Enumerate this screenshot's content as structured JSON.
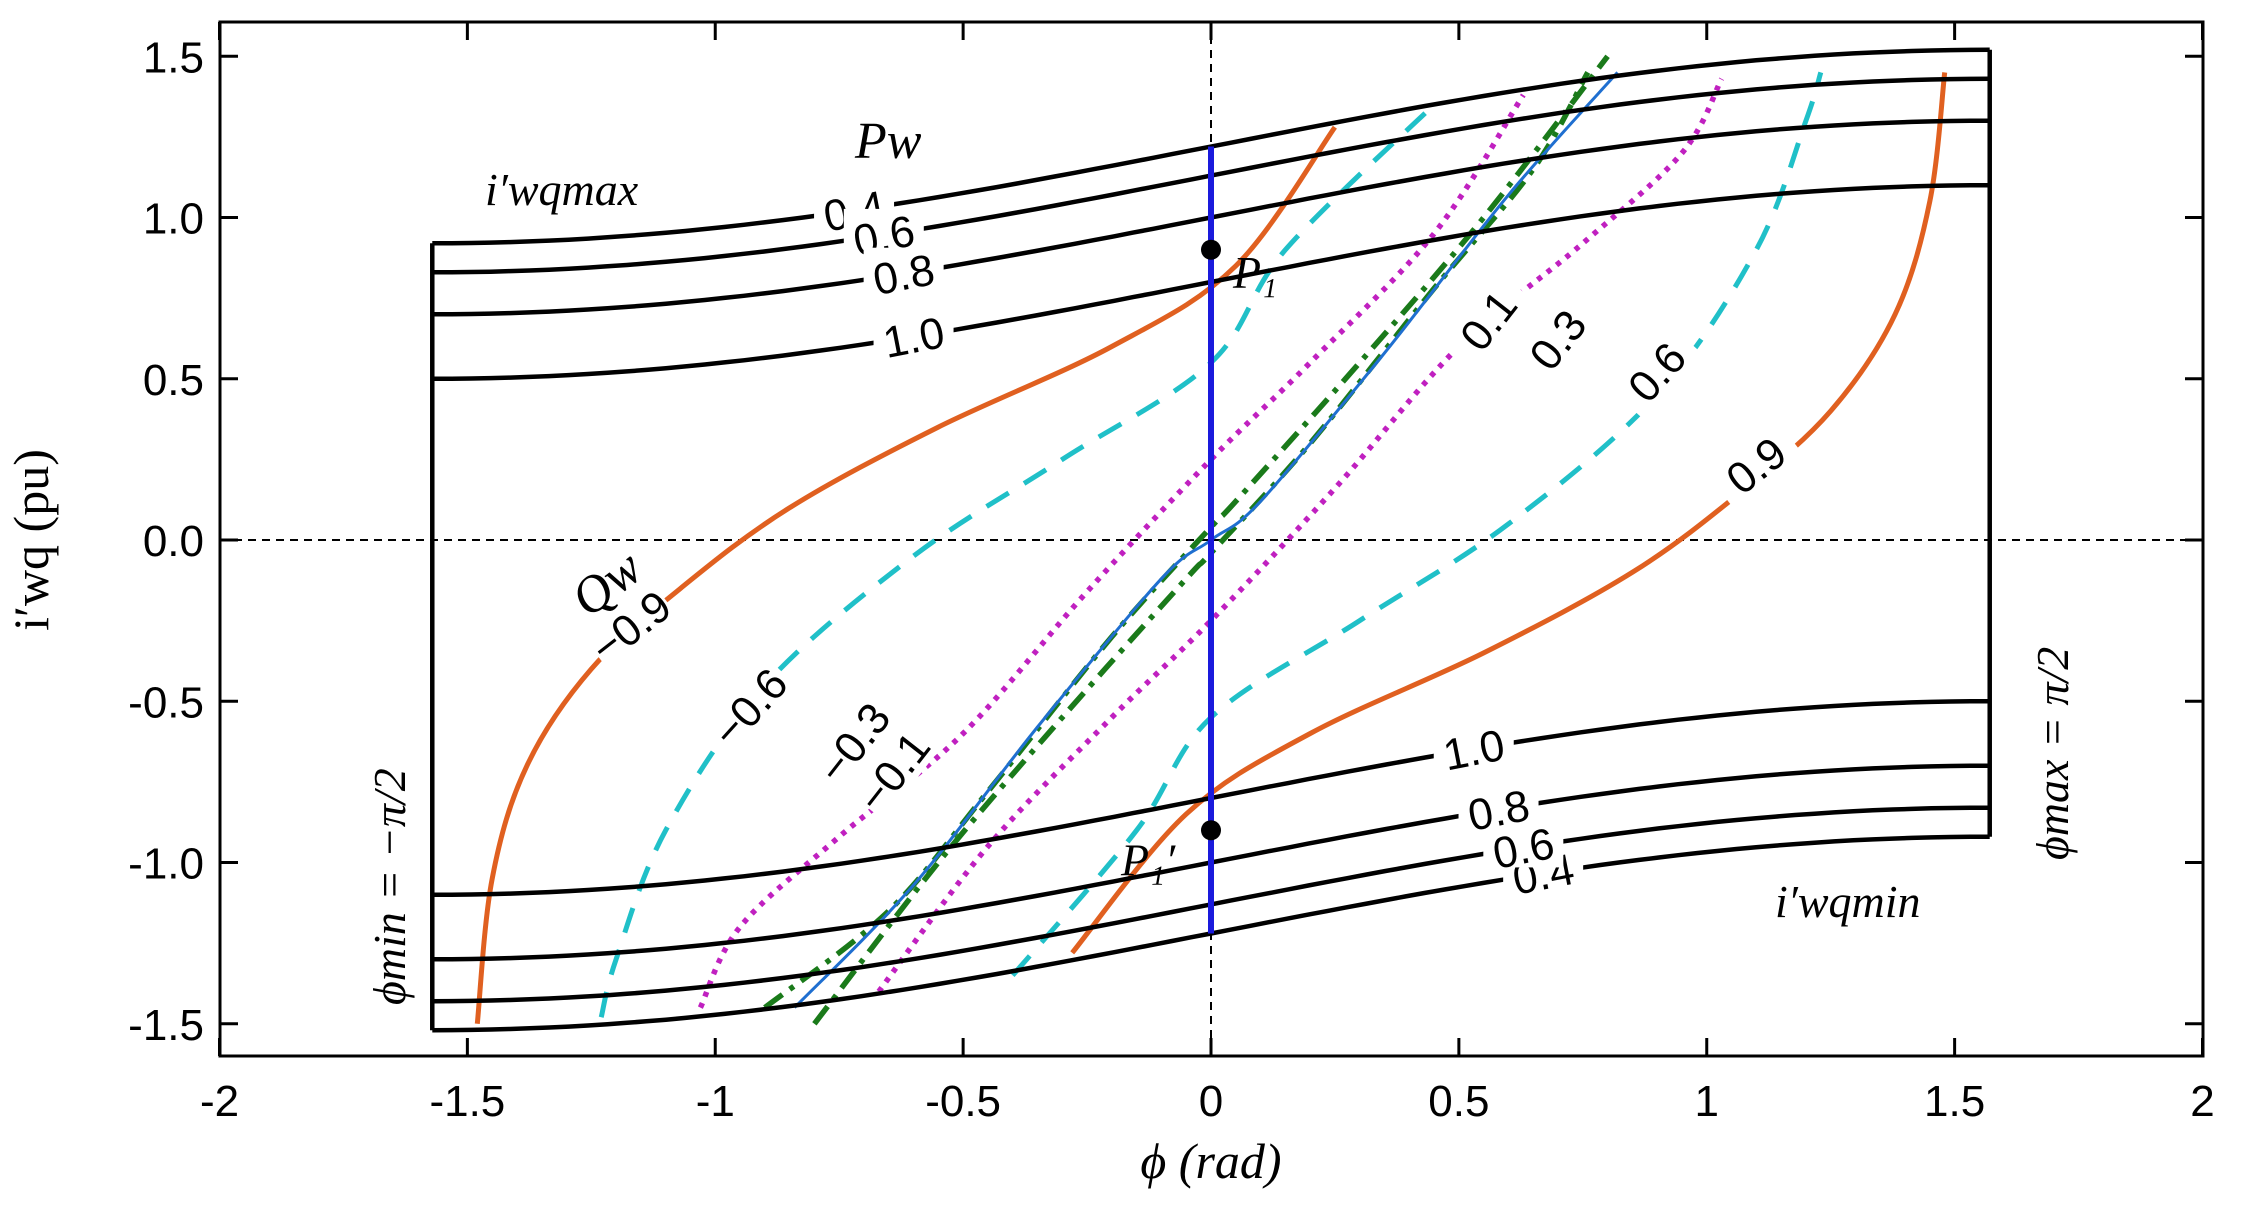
{
  "chart_data": {
    "type": "line",
    "title": "",
    "xlabel": "ϕ (rad)",
    "ylabel": "i′wq (pu)",
    "xlim": [
      -2,
      2
    ],
    "ylim": [
      -1.6,
      1.6
    ],
    "xticks": [
      -2,
      -1.5,
      -1,
      -0.5,
      0,
      0.5,
      1,
      1.5,
      2
    ],
    "xtick_labels": [
      "-2",
      "-1.5",
      "-1",
      "-0.5",
      "0",
      "0.5",
      "1",
      "1.5",
      "2"
    ],
    "yticks": [
      -1.5,
      -1.0,
      -0.5,
      0.0,
      0.5,
      1.0,
      1.5
    ],
    "ytick_labels": [
      "-1.5",
      "-1.0",
      "-0.5",
      "0.0",
      "0.5",
      "1.0",
      "1.5"
    ],
    "phi_limits": [
      -1.5708,
      1.5708
    ],
    "pw_series": [
      {
        "name": "Pw = 0.4",
        "label": "0.4",
        "iwq_at_phi_min": 0.92,
        "iwq_at_phi_max": 1.52
      },
      {
        "name": "Pw = 0.6",
        "label": "0.6",
        "iwq_at_phi_min": 0.83,
        "iwq_at_phi_max": 1.43
      },
      {
        "name": "Pw = 0.8",
        "label": "0.8",
        "iwq_at_phi_min": 0.7,
        "iwq_at_phi_max": 1.3
      },
      {
        "name": "Pw = 1.0",
        "label": "1.0",
        "iwq_at_phi_min": 0.5,
        "iwq_at_phi_max": 1.1
      }
    ],
    "qw_series": [
      {
        "name": "Qw = 0.1",
        "label": "0.1",
        "style": "dashdot",
        "color": "#1a7a1a",
        "points": [
          [
            -0.8,
            -1.5
          ],
          [
            -0.55,
            -1.0
          ],
          [
            -0.3,
            -0.55
          ],
          [
            -0.05,
            -0.12
          ],
          [
            0.0,
            -0.04
          ],
          [
            0.2,
            0.3
          ],
          [
            0.45,
            0.78
          ],
          [
            0.65,
            1.15
          ],
          [
            0.76,
            1.45
          ]
        ]
      },
      {
        "name": "Qw = -0.1",
        "label": "−0.1",
        "style": "dashdot",
        "color": "#1a7a1a",
        "points": [
          [
            -0.9,
            -1.45
          ],
          [
            -0.65,
            -1.15
          ],
          [
            -0.45,
            -0.78
          ],
          [
            -0.2,
            -0.3
          ],
          [
            0.0,
            0.04
          ],
          [
            0.05,
            0.12
          ],
          [
            0.3,
            0.55
          ],
          [
            0.55,
            1.0
          ],
          [
            0.8,
            1.5
          ]
        ]
      },
      {
        "name": "Qw = 0 (blue)",
        "label": "",
        "style": "solid",
        "color": "#1f6fd0",
        "points": [
          [
            -0.84,
            -1.45
          ],
          [
            -0.6,
            -1.07
          ],
          [
            -0.35,
            -0.58
          ],
          [
            -0.1,
            -0.12
          ],
          [
            0.0,
            0.0
          ],
          [
            0.1,
            0.12
          ],
          [
            0.35,
            0.58
          ],
          [
            0.6,
            1.07
          ],
          [
            0.82,
            1.45
          ]
        ]
      },
      {
        "name": "Qw = 0.3",
        "label": "0.3",
        "style": "dotted",
        "color": "#c020c0",
        "points": [
          [
            -0.67,
            -1.4
          ],
          [
            -0.45,
            -0.95
          ],
          [
            -0.2,
            -0.55
          ],
          [
            0.0,
            -0.25
          ],
          [
            0.25,
            0.16
          ],
          [
            0.5,
            0.6
          ],
          [
            0.75,
            0.92
          ],
          [
            0.95,
            1.2
          ],
          [
            1.03,
            1.43
          ]
        ]
      },
      {
        "name": "Qw = -0.3",
        "label": "−0.3",
        "style": "dotted",
        "color": "#c020c0",
        "points": [
          [
            -1.03,
            -1.45
          ],
          [
            -0.95,
            -1.2
          ],
          [
            -0.75,
            -0.92
          ],
          [
            -0.5,
            -0.6
          ],
          [
            -0.25,
            -0.16
          ],
          [
            0.0,
            0.25
          ],
          [
            0.2,
            0.55
          ],
          [
            0.45,
            0.95
          ],
          [
            0.63,
            1.38
          ]
        ]
      },
      {
        "name": "Qw = 0.6",
        "label": "0.6",
        "style": "dashed",
        "color": "#20c0c8",
        "points": [
          [
            -0.4,
            -1.35
          ],
          [
            -0.15,
            -0.9
          ],
          [
            0.0,
            -0.55
          ],
          [
            0.3,
            -0.25
          ],
          [
            0.6,
            0.05
          ],
          [
            0.9,
            0.45
          ],
          [
            1.1,
            0.9
          ],
          [
            1.2,
            1.3
          ],
          [
            1.23,
            1.45
          ]
        ]
      },
      {
        "name": "Qw = -0.6",
        "label": "−0.6",
        "style": "dashed",
        "color": "#20c0c8",
        "points": [
          [
            -1.23,
            -1.48
          ],
          [
            -1.2,
            -1.3
          ],
          [
            -1.1,
            -0.9
          ],
          [
            -0.9,
            -0.45
          ],
          [
            -0.6,
            -0.05
          ],
          [
            -0.3,
            0.25
          ],
          [
            0.0,
            0.55
          ],
          [
            0.15,
            0.9
          ],
          [
            0.45,
            1.35
          ]
        ]
      },
      {
        "name": "Qw = 0.9",
        "label": "0.9",
        "style": "solid",
        "color": "#e06020",
        "points": [
          [
            -0.28,
            -1.28
          ],
          [
            -0.05,
            -0.85
          ],
          [
            0.2,
            -0.6
          ],
          [
            0.55,
            -0.35
          ],
          [
            0.85,
            -0.1
          ],
          [
            1.07,
            0.15
          ],
          [
            1.25,
            0.4
          ],
          [
            1.38,
            0.7
          ],
          [
            1.45,
            1.05
          ],
          [
            1.48,
            1.45
          ]
        ]
      },
      {
        "name": "Qw = -0.9",
        "label": "−0.9",
        "style": "solid",
        "color": "#e06020",
        "points": [
          [
            -1.48,
            -1.5
          ],
          [
            -1.45,
            -1.05
          ],
          [
            -1.38,
            -0.7
          ],
          [
            -1.25,
            -0.4
          ],
          [
            -1.07,
            -0.15
          ],
          [
            -0.85,
            0.1
          ],
          [
            -0.55,
            0.35
          ],
          [
            -0.2,
            0.6
          ],
          [
            0.05,
            0.85
          ],
          [
            0.25,
            1.28
          ]
        ]
      }
    ],
    "operating_line": {
      "phi": 0.0,
      "iwq_range": [
        -1.22,
        1.22
      ],
      "color": "#1a1adc"
    },
    "points": [
      {
        "name": "P1",
        "label": "P₁",
        "phi": 0.0,
        "iwq": 0.9
      },
      {
        "name": "P1'",
        "label": "P₁′",
        "phi": 0.0,
        "iwq": -0.9
      }
    ]
  },
  "annotations": {
    "pw_label": "Pw",
    "qw_label": "Qw",
    "iwq_max": "i′wqmax",
    "iwq_min": "i′wqmin",
    "phi_min": "ϕmin = −π/2",
    "phi_max": "ϕmax = π/2"
  },
  "colors": {
    "pw_curve": "#000000",
    "axes": "#000000"
  }
}
